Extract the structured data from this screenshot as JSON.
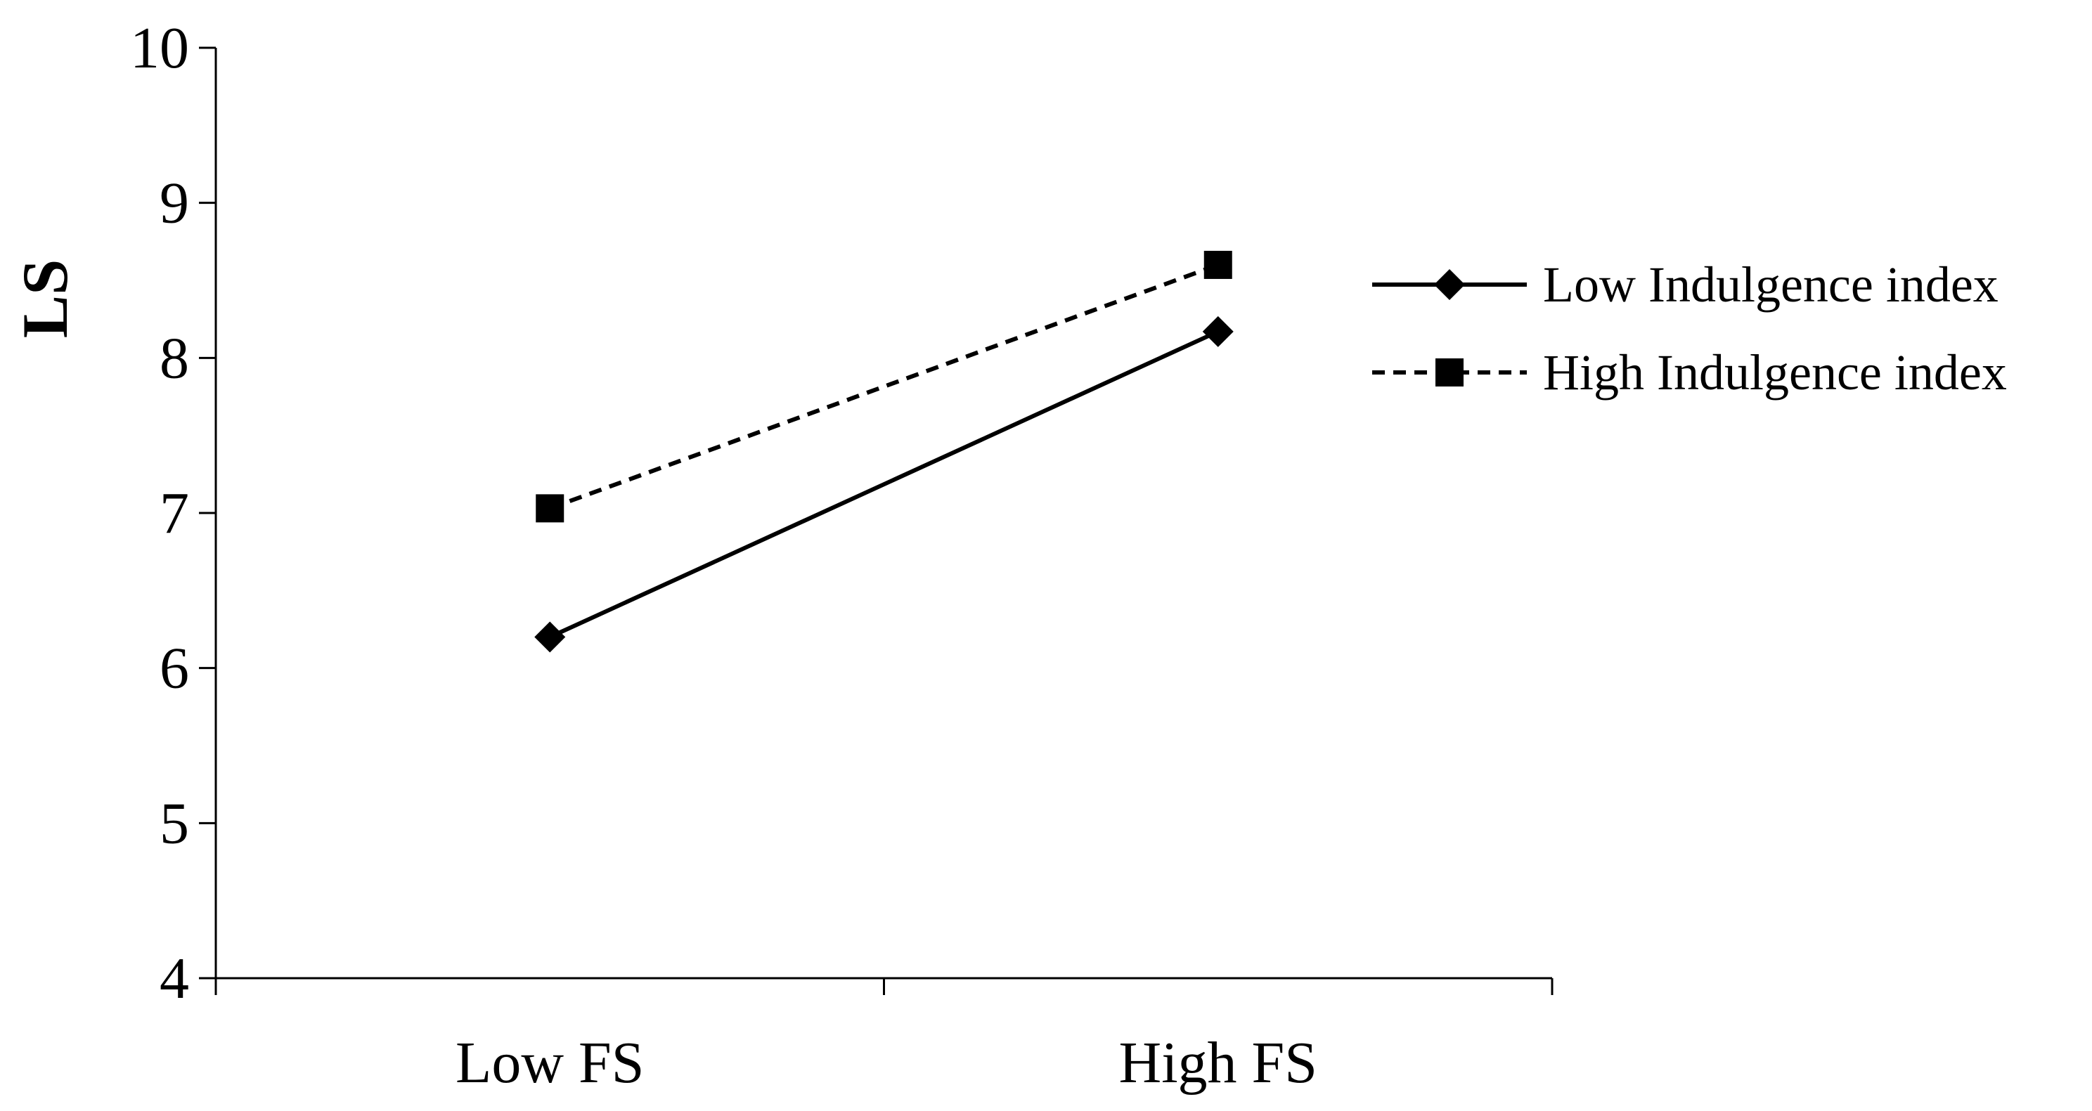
{
  "chart_data": {
    "type": "line",
    "categories": [
      "Low FS",
      "High FS"
    ],
    "series": [
      {
        "name": "Low Indulgence index",
        "values": [
          6.2,
          8.17
        ],
        "marker": "diamond",
        "line_style": "solid",
        "color": "#000000"
      },
      {
        "name": "High Indulgence index",
        "values": [
          7.03,
          8.6
        ],
        "marker": "square",
        "line_style": "dashed",
        "color": "#000000"
      }
    ],
    "ylabel": "LS",
    "xlabel": "",
    "ylim": [
      4,
      10
    ],
    "yticks": [
      "4",
      "5",
      "6",
      "7",
      "8",
      "9",
      "10"
    ],
    "grid": false,
    "legend_position": "right"
  }
}
